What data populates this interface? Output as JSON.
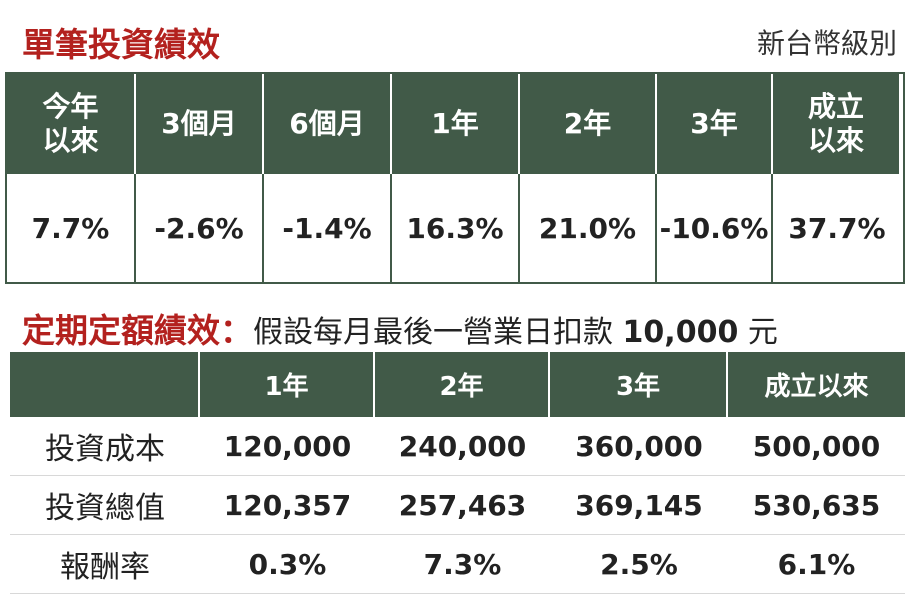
{
  "single": {
    "title": "單筆投資績效",
    "currency": "新台幣級別",
    "headers": [
      "今年\n以來",
      "3個月",
      "6個月",
      "1年",
      "2年",
      "3年",
      "成立\n以來"
    ],
    "values": [
      "7.7%",
      "-2.6%",
      "-1.4%",
      "16.3%",
      "21.0%",
      "-10.6%",
      "37.7%"
    ]
  },
  "periodic": {
    "title": "定期定額績效",
    "separator": "：",
    "subtitle": "假設每月最後一營業日扣款",
    "amount": "10,000",
    "amount_unit": "元",
    "headers": [
      "",
      "1年",
      "2年",
      "3年",
      "成立以來"
    ],
    "rows": [
      {
        "label": "投資成本",
        "values": [
          "120,000",
          "240,000",
          "360,000",
          "500,000"
        ]
      },
      {
        "label": "投資總值",
        "values": [
          "120,357",
          "257,463",
          "369,145",
          "530,635"
        ]
      },
      {
        "label": "報酬率",
        "values": [
          "0.3%",
          "7.3%",
          "2.5%",
          "6.1%"
        ]
      }
    ]
  },
  "colors": {
    "header_green": "#415a48",
    "title_red": "#b3211e"
  }
}
